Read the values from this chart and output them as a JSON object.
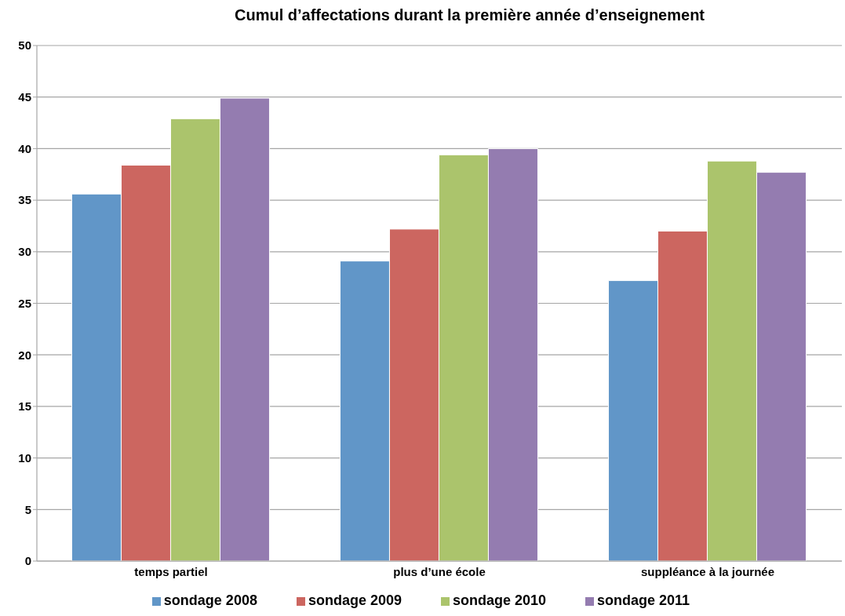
{
  "chart_data": {
    "type": "bar",
    "title": "Cumul d’affectations durant la première année d’enseignement",
    "categories": [
      "temps partiel",
      "plus d’une école",
      "suppléance à la journée"
    ],
    "series": [
      {
        "name": "sondage 2008",
        "color": "#6196c8",
        "values": [
          35.6,
          29.1,
          27.2
        ]
      },
      {
        "name": "sondage 2009",
        "color": "#cc6660",
        "values": [
          38.4,
          32.2,
          32.0
        ]
      },
      {
        "name": "sondage 2010",
        "color": "#abc46c",
        "values": [
          42.9,
          39.4,
          38.8
        ]
      },
      {
        "name": "sondage 2011",
        "color": "#947cb0",
        "values": [
          44.9,
          40.0,
          37.7
        ]
      }
    ],
    "ylim": [
      0,
      50
    ],
    "yticks": [
      0,
      5,
      10,
      15,
      20,
      25,
      30,
      35,
      40,
      45,
      50
    ],
    "grid": "y",
    "legend": "bottom"
  }
}
